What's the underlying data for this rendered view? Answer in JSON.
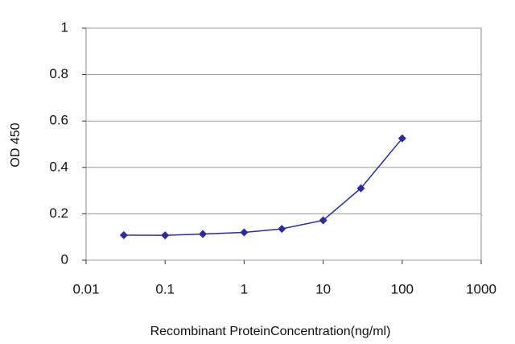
{
  "chart_data": {
    "type": "line",
    "xlabel": "Recombinant ProteinConcentration(ng/ml)",
    "ylabel": "OD 450",
    "x": [
      0.03,
      0.1,
      0.3,
      1,
      3,
      10,
      30,
      100
    ],
    "series": [
      {
        "name": "OD 450",
        "color": "#2b2b9c",
        "values": [
          0.108,
          0.107,
          0.113,
          0.12,
          0.135,
          0.172,
          0.31,
          0.525
        ]
      }
    ],
    "xscale": "log",
    "xlim": [
      0.01,
      1000
    ],
    "xticks": [
      0.01,
      0.1,
      1,
      10,
      100,
      1000
    ],
    "ylim": [
      0,
      1
    ],
    "yticks": [
      0,
      0.2,
      0.4,
      0.6,
      0.8,
      1
    ],
    "grid": true
  }
}
